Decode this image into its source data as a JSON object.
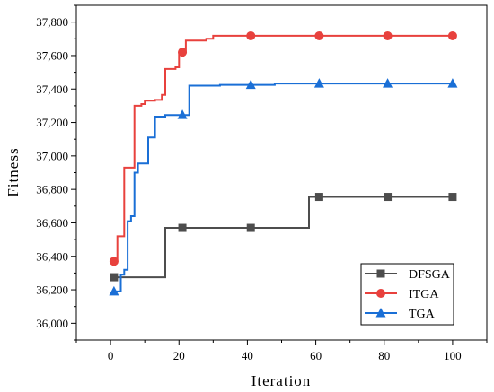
{
  "chart_data": {
    "type": "line",
    "xlabel": "Iteration",
    "ylabel": "Fitness",
    "xlim": [
      -10,
      110
    ],
    "ylim": [
      35900,
      37900
    ],
    "x_ticks": [
      0,
      20,
      40,
      60,
      80,
      100
    ],
    "x_tick_labels": [
      "0",
      "20",
      "40",
      "60",
      "80",
      "100"
    ],
    "y_ticks": [
      36000,
      36200,
      36400,
      36600,
      36800,
      37000,
      37200,
      37400,
      37600,
      37800
    ],
    "y_tick_labels": [
      "36,000",
      "36,200",
      "36,400",
      "36,600",
      "36,800",
      "37,000",
      "37,200",
      "37,400",
      "37,600",
      "37,800"
    ],
    "grid": false,
    "legend_position": "bottom-right",
    "series": [
      {
        "name": "DFSGA",
        "color": "#4d4d4d",
        "marker": "square",
        "step": [
          [
            1,
            36275
          ],
          [
            16,
            36275
          ],
          [
            16,
            36570
          ],
          [
            58,
            36570
          ],
          [
            58,
            36755
          ],
          [
            100,
            36755
          ]
        ],
        "markers": [
          [
            1,
            36275
          ],
          [
            21,
            36570
          ],
          [
            41,
            36570
          ],
          [
            61,
            36755
          ],
          [
            81,
            36755
          ],
          [
            100,
            36755
          ]
        ]
      },
      {
        "name": "ITGA",
        "color": "#e8413d",
        "marker": "circle",
        "step": [
          [
            1,
            36370
          ],
          [
            2,
            36370
          ],
          [
            2,
            36520
          ],
          [
            3,
            36520
          ],
          [
            3,
            36520
          ],
          [
            4,
            36520
          ],
          [
            4,
            36930
          ],
          [
            7,
            36930
          ],
          [
            7,
            37300
          ],
          [
            9,
            37300
          ],
          [
            9,
            37310
          ],
          [
            10,
            37310
          ],
          [
            10,
            37330
          ],
          [
            13,
            37330
          ],
          [
            13,
            37335
          ],
          [
            15,
            37335
          ],
          [
            15,
            37365
          ],
          [
            16,
            37365
          ],
          [
            16,
            37520
          ],
          [
            19,
            37520
          ],
          [
            19,
            37530
          ],
          [
            20,
            37530
          ],
          [
            20,
            37620
          ],
          [
            22,
            37620
          ],
          [
            22,
            37690
          ],
          [
            28,
            37690
          ],
          [
            28,
            37700
          ],
          [
            30,
            37700
          ],
          [
            30,
            37718
          ],
          [
            100,
            37718
          ]
        ],
        "markers": [
          [
            1,
            36370
          ],
          [
            21,
            37620
          ],
          [
            41,
            37718
          ],
          [
            61,
            37718
          ],
          [
            81,
            37718
          ],
          [
            100,
            37718
          ]
        ]
      },
      {
        "name": "TGA",
        "color": "#1a6fd6",
        "marker": "triangle",
        "step": [
          [
            1,
            36190
          ],
          [
            3,
            36190
          ],
          [
            3,
            36290
          ],
          [
            4,
            36290
          ],
          [
            4,
            36320
          ],
          [
            5,
            36320
          ],
          [
            5,
            36610
          ],
          [
            6,
            36610
          ],
          [
            6,
            36640
          ],
          [
            7,
            36640
          ],
          [
            7,
            36900
          ],
          [
            8,
            36900
          ],
          [
            8,
            36955
          ],
          [
            11,
            36955
          ],
          [
            11,
            37110
          ],
          [
            12,
            37110
          ],
          [
            12,
            37110
          ],
          [
            13,
            37110
          ],
          [
            13,
            37235
          ],
          [
            16,
            37235
          ],
          [
            16,
            37245
          ],
          [
            23,
            37245
          ],
          [
            23,
            37420
          ],
          [
            32,
            37420
          ],
          [
            32,
            37425
          ],
          [
            48,
            37425
          ],
          [
            48,
            37433
          ],
          [
            100,
            37433
          ]
        ],
        "markers": [
          [
            1,
            36190
          ],
          [
            21,
            37245
          ],
          [
            41,
            37425
          ],
          [
            61,
            37433
          ],
          [
            81,
            37433
          ],
          [
            100,
            37433
          ]
        ]
      }
    ]
  }
}
